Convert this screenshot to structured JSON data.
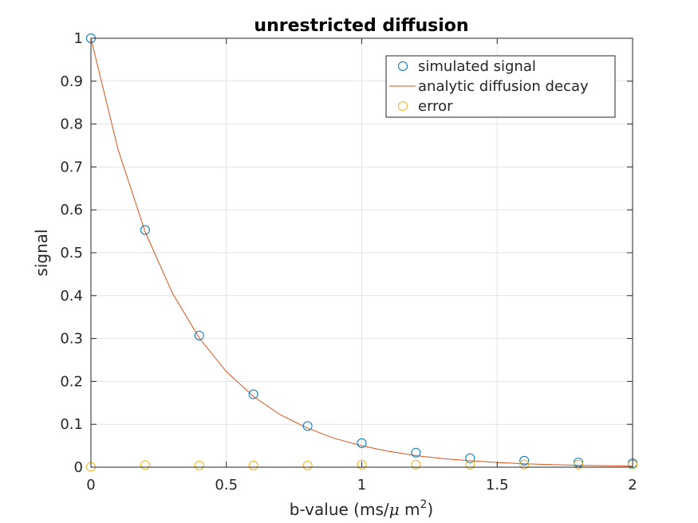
{
  "chart_data": {
    "type": "scatter",
    "title": "unrestricted diffusion",
    "xlabel": {
      "prefix": "b-value (ms/",
      "mu": "μ",
      "unit_space": " m",
      "sup": "2",
      "suffix": ")"
    },
    "ylabel": "signal",
    "xlim": [
      0,
      2
    ],
    "ylim": [
      0,
      1
    ],
    "xticks": [
      0,
      0.5,
      1,
      1.5,
      2
    ],
    "xtick_labels": [
      "0",
      "0.5",
      "1",
      "1.5",
      "2"
    ],
    "yticks": [
      0,
      0.1,
      0.2,
      0.3,
      0.4,
      0.5,
      0.6,
      0.7,
      0.8,
      0.9,
      1
    ],
    "ytick_labels": [
      "0",
      "0.1",
      "0.2",
      "0.3",
      "0.4",
      "0.5",
      "0.6",
      "0.7",
      "0.8",
      "0.9",
      "1"
    ],
    "grid": true,
    "legend_position": "top-right",
    "series": [
      {
        "name": "simulated signal",
        "style": "markers",
        "color": "#0072BD",
        "x": [
          0,
          0.2,
          0.4,
          0.6,
          0.8,
          1.0,
          1.2,
          1.4,
          1.6,
          1.8,
          2.0
        ],
        "y": [
          1.0,
          0.553,
          0.307,
          0.17,
          0.096,
          0.056,
          0.034,
          0.021,
          0.015,
          0.011,
          0.009
        ]
      },
      {
        "name": "analytic diffusion decay",
        "style": "line",
        "color": "#D95319",
        "x": [
          0,
          0.1,
          0.2,
          0.3,
          0.4,
          0.5,
          0.6,
          0.7,
          0.8,
          0.9,
          1.0,
          1.1,
          1.2,
          1.3,
          1.4,
          1.5,
          1.6,
          1.7,
          1.8,
          1.9,
          2.0
        ],
        "y": [
          1.0,
          0.741,
          0.549,
          0.407,
          0.301,
          0.223,
          0.165,
          0.122,
          0.091,
          0.067,
          0.05,
          0.037,
          0.027,
          0.02,
          0.015,
          0.011,
          0.008,
          0.006,
          0.0045,
          0.0034,
          0.0025
        ]
      },
      {
        "name": "error",
        "style": "markers",
        "color": "#EDB120",
        "x": [
          0,
          0.2,
          0.4,
          0.6,
          0.8,
          1.0,
          1.2,
          1.4,
          1.6,
          1.8,
          2.0
        ],
        "y": [
          0.001,
          0.005,
          0.004,
          0.004,
          0.004,
          0.006,
          0.006,
          0.006,
          0.006,
          0.006,
          0.006
        ]
      }
    ]
  }
}
